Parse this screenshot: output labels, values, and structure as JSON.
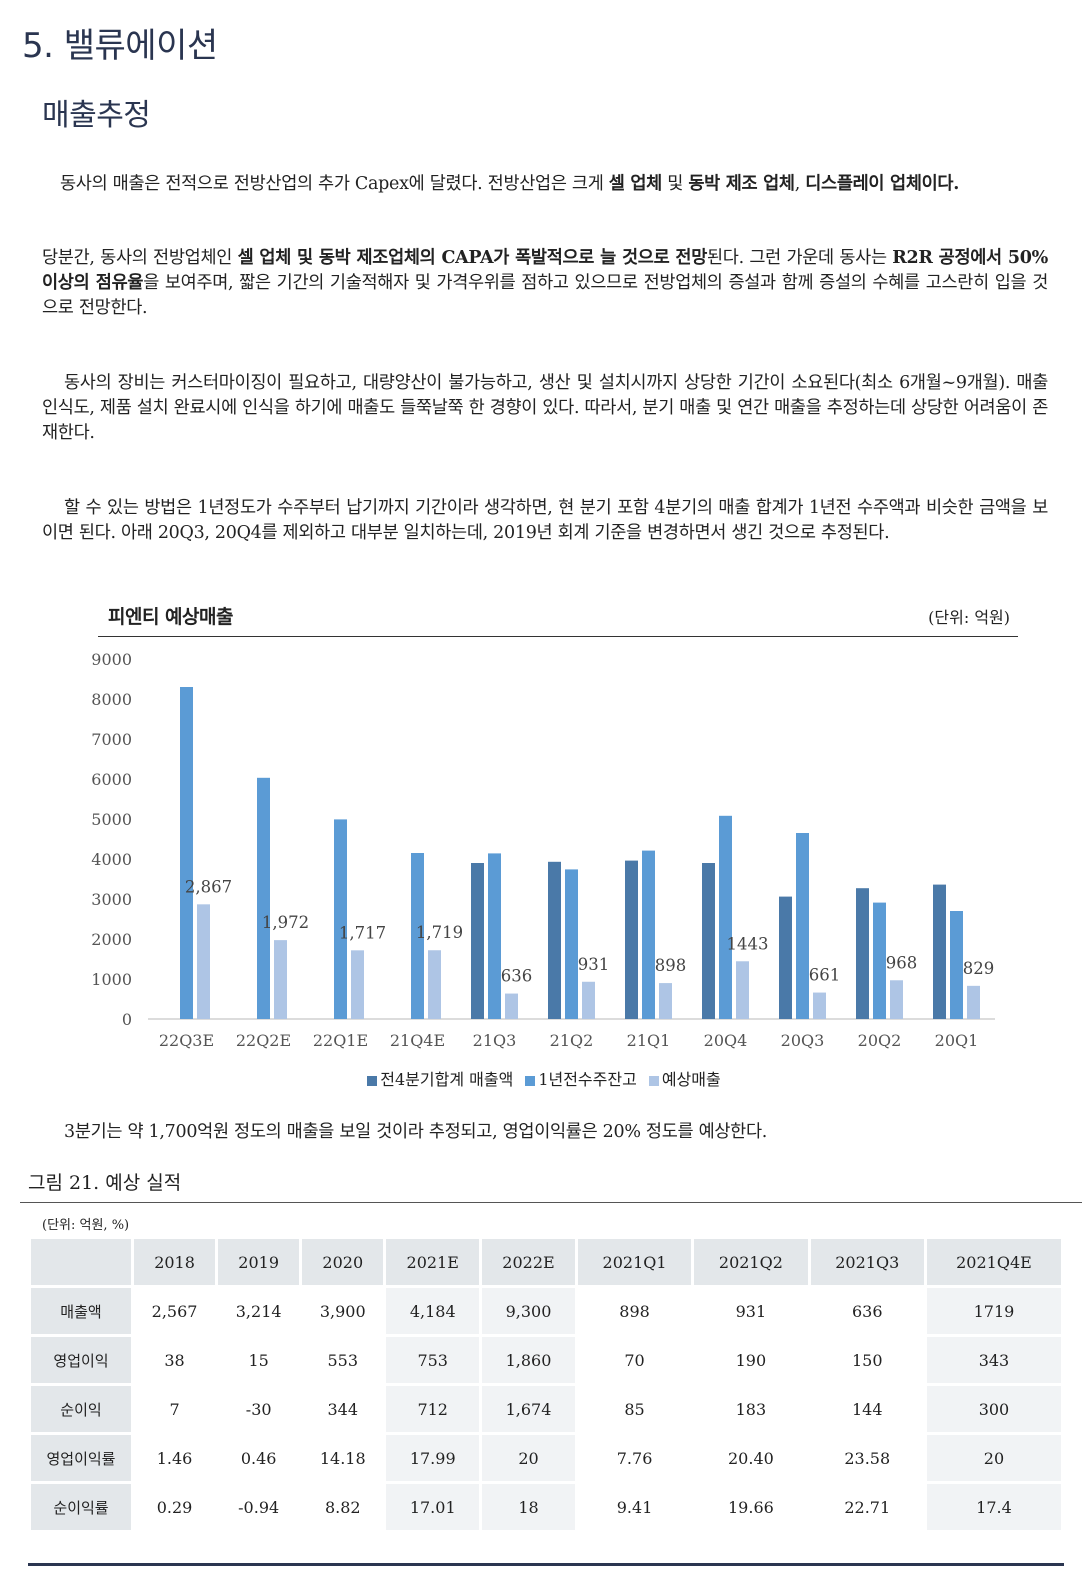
{
  "header": {
    "section": "5. 밸류에이션",
    "subsection": "매출추정"
  },
  "paragraphs": {
    "p1": [
      {
        "t": "동사의 매출은 전적으로 전방산업의 추가 Capex에 달렸다. 전방산업은 크게 "
      },
      {
        "t": "셀 업체",
        "b": true
      },
      {
        "t": " 및 "
      },
      {
        "t": "동박 제조 업체",
        "b": true
      },
      {
        "t": ", "
      },
      {
        "t": "디스플레이 업체이다.",
        "b": true
      }
    ],
    "p2": [
      {
        "t": "당분간, 동사의 전방업체인 "
      },
      {
        "t": "셀 업체 및 동박 제조업체의 CAPA가 폭발적으로 늘 것으로 전망",
        "b": true
      },
      {
        "t": "된다. 그런 가운데 동사는 "
      },
      {
        "t": "R2R 공정에서 50%이상의 점유율",
        "b": true
      },
      {
        "t": "을 보여주며, 짧은 기간의 기술적해자 및 가격우위를 점하고 있으므로 전방업체의 증설과 함께 증설의 수혜를 고스란히 입을 것으로 전망한다."
      }
    ],
    "p3": [
      {
        "t": "동사의 장비는 커스터마이징이 필요하고, 대량양산이 불가능하고, 생산 및 설치시까지 상당한 기간이 소요된다(최소 6개월~9개월). 매출 인식도, 제품 설치 완료시에 인식을 하기에 매출도 들쭉날쭉 한 경향이 있다. 따라서, 분기 매출 및 연간 매출을 추정하는데 상당한 어려움이 존재한다."
      }
    ],
    "p4": [
      {
        "t": "할 수 있는 방법은 1년정도가 수주부터 납기까지 기간이라 생각하면, 현 분기 포함 4분기의 매출 합계가 1년전 수주액과 비슷한 금액을 보이면 된다. 아래 20Q3, 20Q4를 제외하고 대부분 일치하는데, 2019년 회계 기준을 변경하면서 생긴 것으로 추정된다."
      }
    ],
    "p5": [
      {
        "t": "3분기는 약 1,700억원 정도의 매출을 보일 것이라 추정되고, 영업이익률은 20% 정도를 예상한다."
      }
    ]
  },
  "chart_data": {
    "type": "bar",
    "title": "피엔티 예상매출",
    "unit": "(단위: 억원)",
    "categories": [
      "22Q3E",
      "22Q2E",
      "22Q1E",
      "21Q4E",
      "21Q3",
      "21Q2",
      "21Q1",
      "20Q4",
      "20Q3",
      "20Q2",
      "20Q1"
    ],
    "ylim": [
      0,
      9000
    ],
    "yticks": [
      "0",
      "1000",
      "2000",
      "3000",
      "4000",
      "5000",
      "6000",
      "7000",
      "8000",
      "9000"
    ],
    "grid": false,
    "legend_position": "bottom",
    "series": [
      {
        "name": "전4분기합계 매출액",
        "color": "#4a79a8",
        "values": [
          null,
          null,
          null,
          null,
          3900,
          3930,
          3960,
          3900,
          3060,
          3270,
          3360
        ]
      },
      {
        "name": "1년전수주잔고",
        "color": "#5b9bd5",
        "values": [
          8300,
          6030,
          4990,
          4150,
          4140,
          3740,
          4210,
          5080,
          4650,
          2910,
          2700
        ]
      },
      {
        "name": "예상매출",
        "color": "#aec5e5",
        "values": [
          2867,
          1972,
          1717,
          1719,
          636,
          931,
          898,
          1443,
          661,
          968,
          829
        ]
      }
    ],
    "data_labels": [
      "2,867",
      "1,972",
      "1,717",
      "1,719",
      "636",
      "931",
      "898",
      "1443",
      "661",
      "968",
      "829"
    ]
  },
  "figure": {
    "title": "그림 21. 예상 실적",
    "unit": "(단위: 억원, %)"
  },
  "table": {
    "columns": [
      "2018",
      "2019",
      "2020",
      "2021E",
      "2022E",
      "2021Q1",
      "2021Q2",
      "2021Q3",
      "2021Q4E"
    ],
    "rows": [
      {
        "label": "매출액",
        "values": [
          "2,567",
          "3,214",
          "3,900",
          "4,184",
          "9,300",
          "898",
          "931",
          "636",
          "1719"
        ]
      },
      {
        "label": "영업이익",
        "values": [
          "38",
          "15",
          "553",
          "753",
          "1,860",
          "70",
          "190",
          "150",
          "343"
        ]
      },
      {
        "label": "순이익",
        "values": [
          "7",
          "-30",
          "344",
          "712",
          "1,674",
          "85",
          "183",
          "144",
          "300"
        ]
      },
      {
        "label": "영업이익률",
        "values": [
          "1.46",
          "0.46",
          "14.18",
          "17.99",
          "20",
          "7.76",
          "20.40",
          "23.58",
          "20"
        ]
      },
      {
        "label": "순이익률",
        "values": [
          "0.29",
          "-0.94",
          "8.82",
          "17.01",
          "18",
          "9.41",
          "19.66",
          "22.71",
          "17.4"
        ]
      }
    ]
  }
}
